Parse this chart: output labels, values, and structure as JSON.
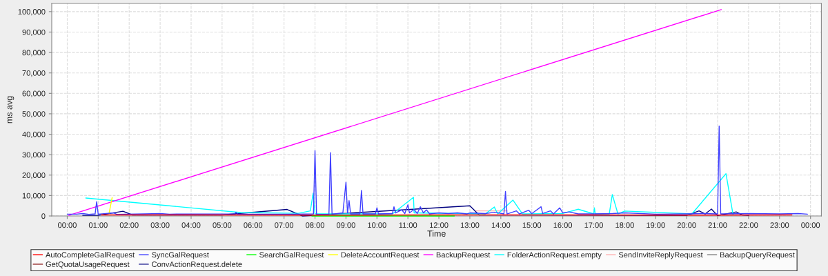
{
  "chart_data": {
    "type": "line",
    "xlabel": "Time",
    "ylabel": "ms avg",
    "xlim": [
      -0.5,
      24.35
    ],
    "ylim": [
      0,
      104000
    ],
    "xticks": [
      {
        "value": 0,
        "label": "00:00"
      },
      {
        "value": 1,
        "label": "01:00"
      },
      {
        "value": 2,
        "label": "02:00"
      },
      {
        "value": 3,
        "label": "03:00"
      },
      {
        "value": 4,
        "label": "04:00"
      },
      {
        "value": 5,
        "label": "05:00"
      },
      {
        "value": 6,
        "label": "06:00"
      },
      {
        "value": 7,
        "label": "07:00"
      },
      {
        "value": 8,
        "label": "08:00"
      },
      {
        "value": 9,
        "label": "09:00"
      },
      {
        "value": 10,
        "label": "10:00"
      },
      {
        "value": 11,
        "label": "11:00"
      },
      {
        "value": 12,
        "label": "12:00"
      },
      {
        "value": 13,
        "label": "13:00"
      },
      {
        "value": 14,
        "label": "14:00"
      },
      {
        "value": 15,
        "label": "15:00"
      },
      {
        "value": 16,
        "label": "16:00"
      },
      {
        "value": 17,
        "label": "17:00"
      },
      {
        "value": 18,
        "label": "18:00"
      },
      {
        "value": 19,
        "label": "19:00"
      },
      {
        "value": 20,
        "label": "20:00"
      },
      {
        "value": 21,
        "label": "21:00"
      },
      {
        "value": 22,
        "label": "22:00"
      },
      {
        "value": 23,
        "label": "23:00"
      },
      {
        "value": 24,
        "label": "00:00"
      }
    ],
    "yticks": [
      0,
      {
        "value": 10000,
        "label": "10,000"
      },
      {
        "value": 20000,
        "label": "20,000"
      },
      {
        "value": 30000,
        "label": "30,000"
      },
      {
        "value": 40000,
        "label": "40,000"
      },
      {
        "value": 50000,
        "label": "50,000"
      },
      {
        "value": 60000,
        "label": "60,000"
      },
      {
        "value": 70000,
        "label": "70,000"
      },
      {
        "value": 80000,
        "label": "80,000"
      },
      {
        "value": 90000,
        "label": "90,000"
      },
      {
        "value": 100000,
        "label": "100,000"
      }
    ],
    "grid": true,
    "legend": "bottom",
    "marker": "none",
    "line_style": "solid",
    "series": [
      {
        "name": "AutoCompleteGalRequest",
        "color": "#ff0000",
        "x": [
          1.1,
          4.0,
          8.0,
          12.0,
          16.0,
          20.0,
          23.4
        ],
        "values": [
          500,
          500,
          400,
          500,
          500,
          400,
          500
        ]
      },
      {
        "name": "SyncGalRequest",
        "color": "#4040ff",
        "x": [
          0,
          0.3,
          0.5,
          0.7,
          0.9,
          0.95,
          1.0,
          1.5,
          1.6,
          2.5,
          3.0,
          3.3,
          5.4,
          5.45,
          5.5,
          7.3,
          7.95,
          8.0,
          8.05,
          8.45,
          8.5,
          8.55,
          8.9,
          9.0,
          9.05,
          9.1,
          9.15,
          9.45,
          9.5,
          9.55,
          9.95,
          10.0,
          10.05,
          10.5,
          10.55,
          10.6,
          10.8,
          10.9,
          11.0,
          11.05,
          11.2,
          11.3,
          11.4,
          11.5,
          11.6,
          11.7,
          12.0,
          12.3,
          12.6,
          12.9,
          13.0,
          13.5,
          13.8,
          14.1,
          14.15,
          14.2,
          14.5,
          14.6,
          14.9,
          15.0,
          15.3,
          15.35,
          15.6,
          15.7,
          15.9,
          16.0,
          16.2,
          16.5,
          17.0,
          17.6,
          18.0,
          19.0,
          20.0,
          20.5,
          21.0,
          21.05,
          21.1,
          22.0,
          23.0,
          23.6,
          23.9
        ],
        "values": [
          900,
          900,
          1200,
          800,
          1000,
          7000,
          900,
          1500,
          800,
          1000,
          1200,
          900,
          1000,
          1800,
          900,
          900,
          1000,
          32000,
          800,
          900,
          31000,
          900,
          1500,
          16500,
          1500,
          7500,
          1000,
          1000,
          12500,
          1000,
          1000,
          4000,
          1000,
          1200,
          4500,
          1500,
          3000,
          1200,
          5500,
          1500,
          3200,
          1200,
          4500,
          1500,
          3000,
          1000,
          1500,
          1200,
          1500,
          1000,
          1500,
          1200,
          1800,
          1000,
          12000,
          1000,
          2500,
          1000,
          2800,
          1200,
          4500,
          1200,
          2500,
          1000,
          4000,
          1500,
          2000,
          1000,
          1000,
          1200,
          1500,
          900,
          1000,
          1200,
          1000,
          44000,
          1000,
          1200,
          1000,
          1200,
          900
        ]
      },
      {
        "name": "SearchGalRequest",
        "color": "#00ff00",
        "x": [
          7.9,
          9.0,
          10.0,
          11.0,
          12.5
        ],
        "values": [
          0,
          0,
          0,
          0,
          0
        ]
      },
      {
        "name": "DeleteAccountRequest",
        "color": "#ffff00",
        "x": [
          1.35,
          1.45
        ],
        "values": [
          1200,
          9000
        ]
      },
      {
        "name": "BackupRequest",
        "color": "#ff00ff",
        "x": [
          0.05,
          21.12
        ],
        "values": [
          300,
          101000
        ]
      },
      {
        "name": "FolderActionRequest.empty",
        "color": "#00ffff",
        "x": [
          0.6,
          5.6,
          7.47,
          7.85,
          7.94,
          8.0,
          10.5,
          11.18,
          11.2,
          13.5,
          13.79,
          13.9,
          14.39,
          14.7,
          16.0,
          16.5,
          17.0,
          17.02,
          17.05,
          17.5,
          17.6,
          17.78,
          18.0,
          20.17,
          21.27,
          21.5
        ],
        "values": [
          8800,
          1700,
          1300,
          2500,
          11200,
          1000,
          1000,
          9100,
          1500,
          1000,
          4400,
          1000,
          7800,
          1000,
          1200,
          3300,
          1000,
          4000,
          1000,
          1000,
          10500,
          1000,
          2400,
          1000,
          20700,
          500
        ]
      },
      {
        "name": "SendInviteReplyRequest",
        "color": "#ffb0b0",
        "x": [
          13.2,
          14.2
        ],
        "values": [
          2500,
          2500
        ]
      },
      {
        "name": "BackupQueryRequest",
        "color": "#808080"
      },
      {
        "name": "GetQuotaUsageRequest",
        "color": "#800000"
      },
      {
        "name": "ConvActionRequest.delete",
        "color": "#000080",
        "x": [
          0.5,
          1.0,
          1.8,
          2.1,
          5.0,
          7.1,
          7.6,
          12.5,
          13.0,
          13.3,
          20.0,
          20.4,
          20.6,
          20.8,
          21.0,
          21.6,
          21.8,
          22.0
        ],
        "values": [
          300,
          300,
          2300,
          500,
          500,
          3200,
          0,
          null,
          5000,
          500,
          300,
          2500,
          1000,
          3400,
          200,
          2000,
          500,
          300
        ]
      }
    ]
  }
}
